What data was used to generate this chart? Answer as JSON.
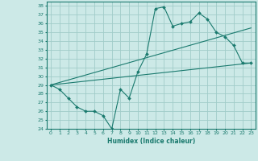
{
  "title": "",
  "xlabel": "Humidex (Indice chaleur)",
  "ylabel": "",
  "bg_color": "#cce9e7",
  "grid_color": "#a0ccc9",
  "line_color": "#1a7a6e",
  "xlim": [
    -0.5,
    23.5
  ],
  "ylim": [
    24,
    38.5
  ],
  "yticks": [
    24,
    25,
    26,
    27,
    28,
    29,
    30,
    31,
    32,
    33,
    34,
    35,
    36,
    37,
    38
  ],
  "xticks": [
    0,
    1,
    2,
    3,
    4,
    5,
    6,
    7,
    8,
    9,
    10,
    11,
    12,
    13,
    14,
    15,
    16,
    17,
    18,
    19,
    20,
    21,
    22,
    23
  ],
  "line1_x": [
    0,
    1,
    2,
    3,
    4,
    5,
    6,
    7,
    8,
    9,
    10,
    11,
    12,
    13,
    14,
    15,
    16,
    17,
    18,
    19,
    20,
    21,
    22,
    23
  ],
  "line1_y": [
    29.0,
    28.5,
    27.5,
    26.5,
    26.0,
    26.0,
    25.5,
    24.0,
    28.5,
    27.5,
    30.5,
    32.5,
    37.7,
    37.9,
    35.7,
    36.0,
    36.2,
    37.2,
    36.5,
    35.0,
    34.5,
    33.5,
    31.5,
    31.5
  ],
  "line2_x": [
    0,
    23
  ],
  "line2_y": [
    29.0,
    31.5
  ],
  "line3_x": [
    0,
    23
  ],
  "line3_y": [
    29.0,
    35.5
  ]
}
